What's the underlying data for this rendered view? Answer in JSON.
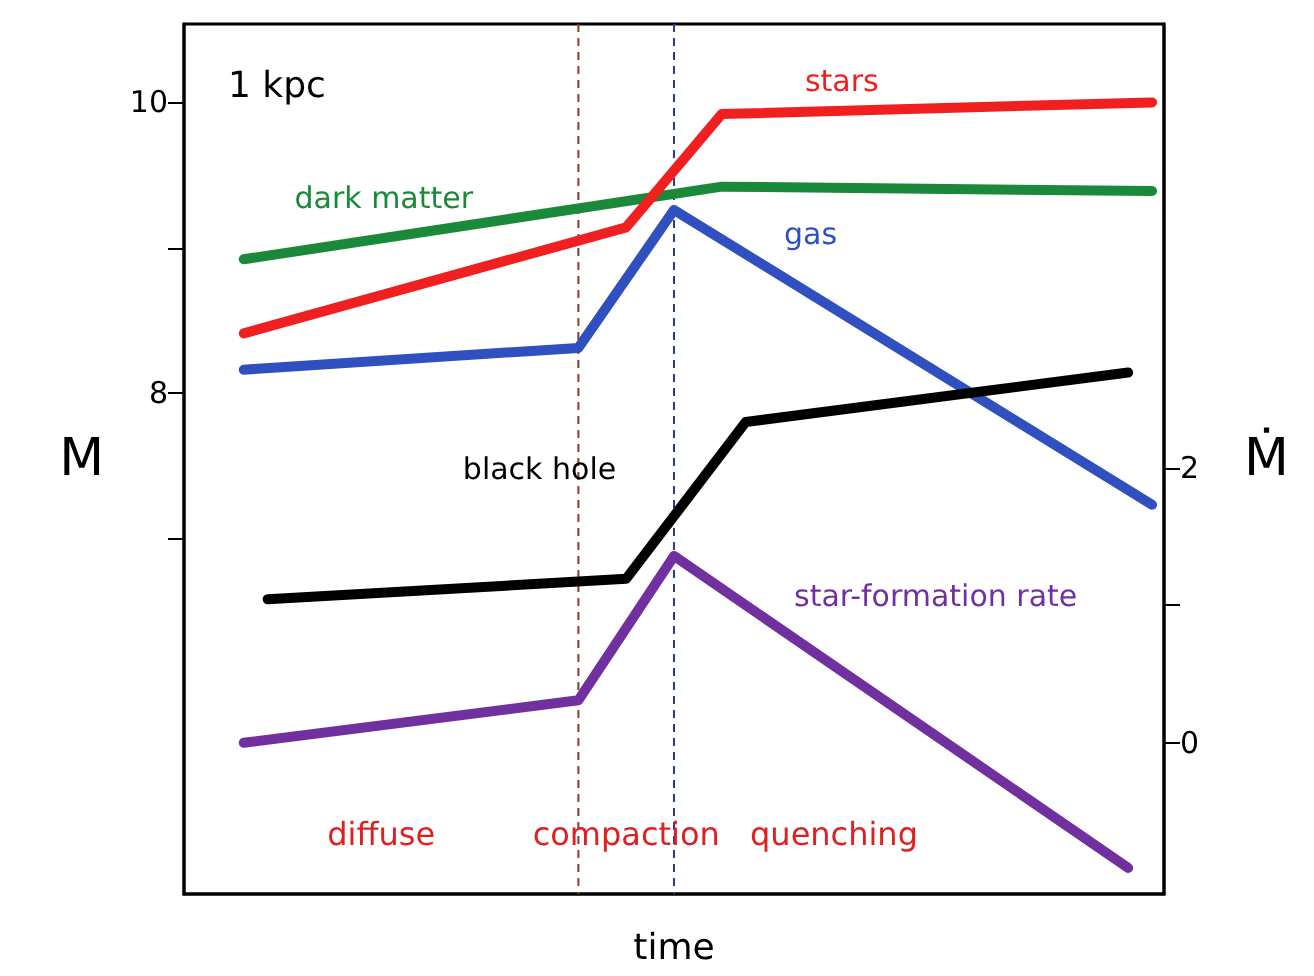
{
  "chart_data": {
    "type": "line",
    "xlabel": "time",
    "ylabel": "M",
    "y2label": "Ṁ",
    "categories": [
      null,
      null,
      null,
      null,
      null,
      null,
      null,
      null,
      null,
      null,
      null,
      null,
      null,
      null,
      null,
      null,
      null,
      null,
      null,
      null,
      null,
      null,
      null,
      null,
      null,
      null,
      null,
      null,
      null,
      null,
      null,
      null,
      null,
      null,
      null,
      null,
      null,
      null,
      null,
      null,
      null
    ],
    "ylim": [
      4.55,
      10.54
    ],
    "yticks": [
      {
        "value": 7,
        "label": null
      },
      8,
      {
        "value": 9,
        "label": null
      },
      10
    ],
    "y2lim": [
      -1.1,
      5.23
    ],
    "y2ticks": [
      0,
      {
        "value": 1,
        "label": null
      },
      2
    ],
    "grid": false,
    "legend": false,
    "marker": "none",
    "line_style": "solid",
    "series": [
      {
        "name": "dark matter",
        "color": "#1a8a3a",
        "values": [
          null,
          null,
          8.92,
          null,
          null,
          null,
          null,
          null,
          null,
          null,
          null,
          null,
          null,
          null,
          null,
          null,
          null,
          null,
          null,
          null,
          null,
          null,
          9.42,
          null,
          null,
          null,
          null,
          null,
          null,
          null,
          null,
          null,
          null,
          null,
          null,
          null,
          null,
          null,
          null,
          null,
          9.39
        ]
      },
      {
        "name": "stars",
        "color": "#f02020",
        "values": [
          null,
          null,
          8.41,
          null,
          null,
          null,
          null,
          null,
          null,
          null,
          null,
          null,
          null,
          null,
          null,
          null,
          null,
          null,
          9.14,
          null,
          null,
          null,
          9.92,
          null,
          null,
          null,
          null,
          null,
          null,
          null,
          null,
          null,
          null,
          null,
          null,
          null,
          null,
          null,
          null,
          null,
          10.0
        ]
      },
      {
        "name": "gas",
        "color": "#3050c0",
        "values": [
          null,
          null,
          8.16,
          null,
          null,
          null,
          null,
          null,
          null,
          null,
          null,
          null,
          null,
          null,
          null,
          null,
          8.31,
          null,
          null,
          null,
          9.26,
          null,
          null,
          null,
          null,
          null,
          null,
          null,
          null,
          null,
          null,
          null,
          null,
          null,
          null,
          null,
          null,
          null,
          null,
          null,
          7.23
        ]
      },
      {
        "name": "black hole",
        "color": "#000000",
        "values": [
          null,
          null,
          null,
          6.58,
          null,
          null,
          null,
          null,
          null,
          null,
          null,
          null,
          null,
          null,
          null,
          null,
          null,
          null,
          6.72,
          null,
          null,
          null,
          null,
          7.8,
          null,
          null,
          null,
          null,
          null,
          null,
          null,
          null,
          null,
          null,
          null,
          null,
          null,
          null,
          null,
          8.14,
          null
        ]
      },
      {
        "name": "star-formation rate",
        "color": "#7030a0",
        "axis": "y2",
        "values": [
          null,
          null,
          0,
          null,
          null,
          null,
          null,
          null,
          null,
          null,
          null,
          null,
          null,
          null,
          null,
          null,
          0.31,
          null,
          null,
          null,
          1.36,
          null,
          null,
          null,
          null,
          null,
          null,
          null,
          null,
          null,
          null,
          null,
          null,
          null,
          null,
          null,
          null,
          null,
          null,
          -0.91,
          null
        ]
      }
    ],
    "annotations": [
      "1 kpc",
      "diffuse",
      "compaction",
      "quenching"
    ]
  }
}
